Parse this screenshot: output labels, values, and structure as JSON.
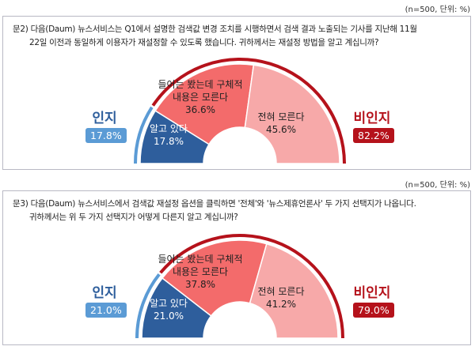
{
  "charts_meta": {
    "colors": {
      "aware": "#2e5e9c",
      "aware_light": "#5b9bd5",
      "heard": "#f36b6b",
      "unaware": "#f7a9a9",
      "unaware_group": "#b5121b"
    }
  },
  "chart_data": [
    {
      "type": "pie",
      "variant": "half-donut",
      "note": "(n=500, 단위: %)",
      "question_line1": "문2) 다음(Daum) 뉴스서비스는 Q1에서 설명한 검색값 변경 조치를 시행하면서 검색 결과 노출되는 기사를 지난해 11월",
      "question_line2": "22일 이전과 동일하게 이용자가 재설정할 수 있도록 했습니다. 귀하께서는 재설정 방법을 알고 계십니까?",
      "slices": [
        {
          "label": "알고 있다",
          "value": 17.8,
          "value_label": "17.8%"
        },
        {
          "label": "들어는 봤는데 구체적 내용은 모른다",
          "label_line1": "들어는 봤는데 구체적",
          "label_line2": "내용은 모른다",
          "value": 36.6,
          "value_label": "36.6%"
        },
        {
          "label": "전혀 모른다",
          "value": 45.6,
          "value_label": "45.6%"
        }
      ],
      "groups": [
        {
          "label": "인지",
          "value": 17.8,
          "value_label": "17.8%"
        },
        {
          "label": "비인지",
          "value": 82.2,
          "value_label": "82.2%"
        }
      ]
    },
    {
      "type": "pie",
      "variant": "half-donut",
      "note": "(n=500, 단위: %)",
      "question_line1": "문3) 다음(Daum) 뉴스서비스에서 검색값 재설정 옵션을 클릭하면 '전체'와 '뉴스제휴언론사' 두 가지 선택지가 나옵니다.",
      "question_line2": "귀하께서는 위 두 가지 선택지가 어떻게 다른지 알고 계십니까?",
      "slices": [
        {
          "label": "알고 있다",
          "value": 21.0,
          "value_label": "21.0%"
        },
        {
          "label": "들어는 봤는데 구체적 내용은 모른다",
          "label_line1": "들어는 봤는데 구체적",
          "label_line2": "내용은 모른다",
          "value": 37.8,
          "value_label": "37.8%"
        },
        {
          "label": "전혀 모른다",
          "value": 41.2,
          "value_label": "41.2%"
        }
      ],
      "groups": [
        {
          "label": "인지",
          "value": 21.0,
          "value_label": "21.0%"
        },
        {
          "label": "비인지",
          "value": 79.0,
          "value_label": "79.0%"
        }
      ]
    }
  ]
}
